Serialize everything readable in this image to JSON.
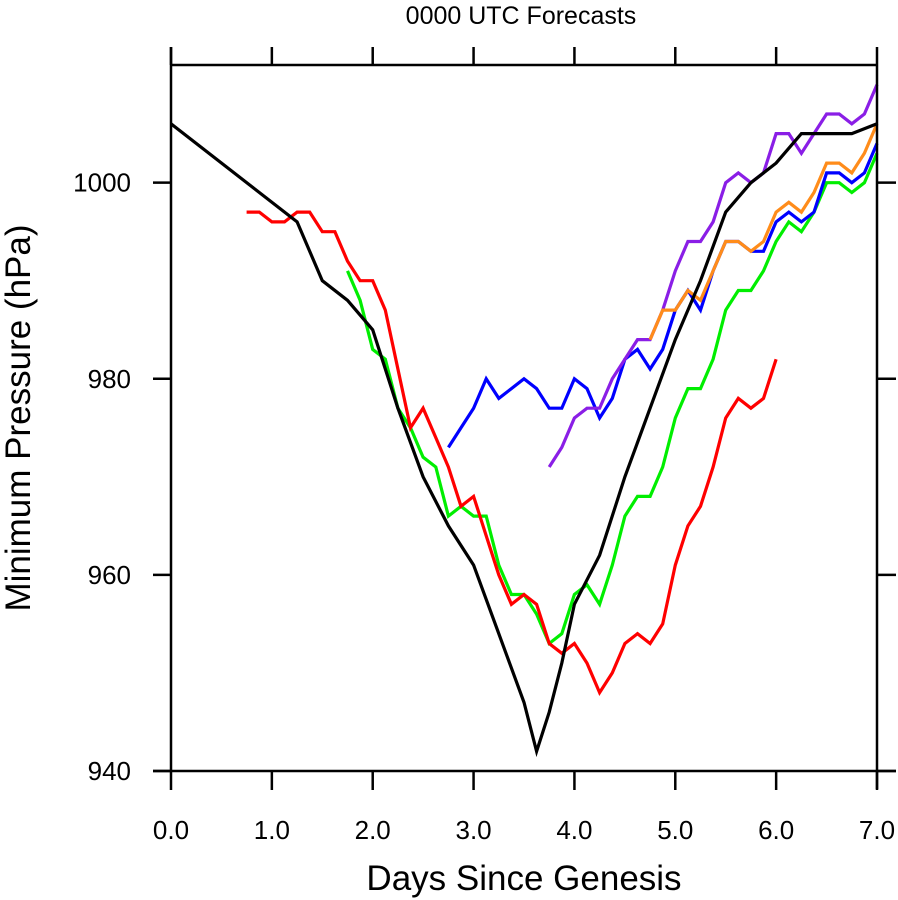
{
  "chart_data": {
    "type": "line",
    "title": "0000 UTC Forecasts",
    "xlabel": "Days Since Genesis",
    "ylabel": "Minimum Pressure (hPa)",
    "xlim": [
      0,
      7
    ],
    "ylim": [
      940,
      1012
    ],
    "x_ticks": [
      0,
      1,
      2,
      3,
      4,
      5,
      6,
      7
    ],
    "x_tick_labels": [
      "0.0",
      "1.0",
      "2.0",
      "3.0",
      "4.0",
      "5.0",
      "6.0",
      "7.0"
    ],
    "y_ticks": [
      940,
      960,
      980,
      1000
    ],
    "y_tick_labels": [
      "940",
      "960",
      "980",
      "1000"
    ],
    "grid": false,
    "legend": "none",
    "series": [
      {
        "name": "green-forecast",
        "color": "#00ee00",
        "x": [
          1.75,
          1.875,
          2.0,
          2.125,
          2.25,
          2.375,
          2.5,
          2.625,
          2.75,
          2.875,
          3.0,
          3.125,
          3.25,
          3.375,
          3.5,
          3.625,
          3.75,
          3.875,
          4.0,
          4.125,
          4.25,
          4.375,
          4.5,
          4.625,
          4.75,
          4.875,
          5.0,
          5.125,
          5.25,
          5.375,
          5.5,
          5.625,
          5.75,
          5.875,
          6.0,
          6.125,
          6.25,
          6.375,
          6.5,
          6.625,
          6.75,
          6.875,
          7.0
        ],
        "y": [
          991,
          988,
          983,
          982,
          977,
          975,
          972,
          971,
          966,
          967,
          966,
          966,
          961,
          958,
          958,
          956,
          953,
          954,
          958,
          959,
          957,
          961,
          966,
          968,
          968,
          971,
          976,
          979,
          979,
          982,
          987,
          989,
          989,
          991,
          994,
          996,
          995,
          997,
          1000,
          1000,
          999,
          1000,
          1003
        ]
      },
      {
        "name": "red-forecast",
        "color": "#ff0000",
        "x": [
          0.75,
          0.875,
          1.0,
          1.125,
          1.25,
          1.375,
          1.5,
          1.625,
          1.75,
          1.875,
          2.0,
          2.125,
          2.25,
          2.375,
          2.5,
          2.625,
          2.75,
          2.875,
          3.0,
          3.125,
          3.25,
          3.375,
          3.5,
          3.625,
          3.75,
          3.875,
          4.0,
          4.125,
          4.25,
          4.375,
          4.5,
          4.625,
          4.75,
          4.875,
          5.0,
          5.125,
          5.25,
          5.375,
          5.5,
          5.625,
          5.75,
          5.875,
          6.0
        ],
        "y": [
          997,
          997,
          996,
          996,
          997,
          997,
          995,
          995,
          992,
          990,
          990,
          987,
          981,
          975,
          977,
          974,
          971,
          967,
          968,
          964,
          960,
          957,
          958,
          957,
          953,
          952,
          953,
          951,
          948,
          950,
          953,
          954,
          953,
          955,
          961,
          965,
          967,
          971,
          976,
          978,
          977,
          978,
          982
        ]
      },
      {
        "name": "blue-forecast",
        "color": "#0000ff",
        "x": [
          2.75,
          2.875,
          3.0,
          3.125,
          3.25,
          3.375,
          3.5,
          3.625,
          3.75,
          3.875,
          4.0,
          4.125,
          4.25,
          4.375,
          4.5,
          4.625,
          4.75,
          4.875,
          5.0,
          5.125,
          5.25,
          5.375,
          5.5,
          5.625,
          5.75,
          5.875,
          6.0,
          6.125,
          6.25,
          6.375,
          6.5,
          6.625,
          6.75,
          6.875,
          7.0
        ],
        "y": [
          973,
          975,
          977,
          980,
          978,
          979,
          980,
          979,
          977,
          977,
          980,
          979,
          976,
          978,
          982,
          983,
          981,
          983,
          987,
          989,
          987,
          991,
          994,
          994,
          993,
          993,
          996,
          997,
          996,
          997,
          1001,
          1001,
          1000,
          1001,
          1004
        ]
      },
      {
        "name": "purple-forecast",
        "color": "#8a1ee6",
        "x": [
          3.75,
          3.875,
          4.0,
          4.125,
          4.25,
          4.375,
          4.5,
          4.625,
          4.75,
          4.875,
          5.0,
          5.125,
          5.25,
          5.375,
          5.5,
          5.625,
          5.75,
          5.875,
          6.0,
          6.125,
          6.25,
          6.375,
          6.5,
          6.625,
          6.75,
          6.875,
          7.0
        ],
        "y": [
          971,
          973,
          976,
          977,
          977,
          980,
          982,
          984,
          984,
          987,
          991,
          994,
          994,
          996,
          1000,
          1001,
          1000,
          1001,
          1005,
          1005,
          1003,
          1005,
          1007,
          1007,
          1006,
          1007,
          1010
        ]
      },
      {
        "name": "orange-forecast",
        "color": "#ff8c1a",
        "x": [
          4.75,
          4.875,
          5.0,
          5.125,
          5.25,
          5.375,
          5.5,
          5.625,
          5.75,
          5.875,
          6.0,
          6.125,
          6.25,
          6.375,
          6.5,
          6.625,
          6.75,
          6.875,
          7.0
        ],
        "y": [
          984,
          987,
          987,
          989,
          988,
          991,
          994,
          994,
          993,
          994,
          997,
          998,
          997,
          999,
          1002,
          1002,
          1001,
          1003,
          1006
        ]
      },
      {
        "name": "black-observed",
        "color": "#000000",
        "x": [
          0,
          1.25,
          1.5,
          1.75,
          2.0,
          2.25,
          2.5,
          2.75,
          3.0,
          3.25,
          3.5,
          3.625,
          3.75,
          3.875,
          4.0,
          4.25,
          4.5,
          4.75,
          5.0,
          5.25,
          5.5,
          5.75,
          6.0,
          6.25,
          6.75,
          7.0
        ],
        "y": [
          1006,
          996,
          990,
          988,
          985,
          977,
          970,
          965,
          961,
          954,
          947,
          942,
          946,
          951,
          957,
          962,
          970,
          977,
          984,
          990,
          997,
          1000,
          1002,
          1005,
          1005,
          1006
        ]
      }
    ]
  }
}
